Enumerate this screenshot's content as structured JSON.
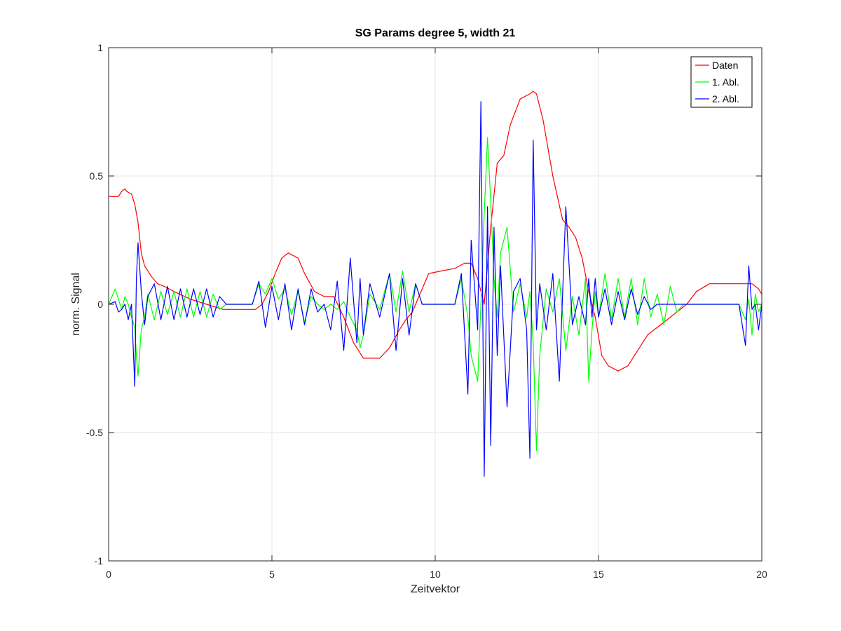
{
  "chart_data": {
    "type": "line",
    "title": "SG Params degree 5, width 21",
    "xlabel": "Zeitvektor",
    "ylabel": "norm. Signal",
    "xlim": [
      0,
      20
    ],
    "ylim": [
      -1,
      1
    ],
    "xticks": [
      0,
      5,
      10,
      15,
      20
    ],
    "xtick_labels": [
      "0",
      "5",
      "10",
      "15",
      "20"
    ],
    "yticks": [
      -1,
      -0.5,
      0,
      0.5,
      1
    ],
    "ytick_labels": [
      "-1",
      "-0.5",
      "0",
      "0.5",
      "1"
    ],
    "grid": true,
    "legend_position": "top-right",
    "series": [
      {
        "name": "Daten",
        "color": "#ff0000",
        "x": [
          0,
          0.3,
          0.4,
          0.5,
          0.55,
          0.7,
          0.8,
          0.9,
          1.0,
          1.1,
          1.3,
          1.5,
          1.7,
          2.0,
          2.5,
          3.0,
          3.5,
          4.0,
          4.5,
          4.7,
          4.9,
          5.1,
          5.3,
          5.5,
          5.8,
          6.0,
          6.3,
          6.6,
          6.9,
          7.2,
          7.5,
          7.8,
          8.0,
          8.3,
          8.6,
          8.9,
          9.1,
          9.3,
          9.5,
          9.8,
          10.2,
          10.6,
          10.9,
          11.1,
          11.3,
          11.5,
          11.7,
          11.9,
          12.1,
          12.3,
          12.6,
          12.9,
          13.0,
          13.1,
          13.3,
          13.6,
          13.9,
          14.1,
          14.3,
          14.5,
          14.7,
          14.9,
          15.1,
          15.3,
          15.6,
          15.9,
          16.2,
          16.5,
          16.8,
          17.1,
          17.4,
          17.7,
          18.0,
          18.4,
          18.8,
          19.0,
          19.2,
          19.5,
          19.7,
          19.9,
          20.0
        ],
        "values": [
          0.42,
          0.42,
          0.44,
          0.45,
          0.44,
          0.43,
          0.39,
          0.32,
          0.2,
          0.15,
          0.11,
          0.08,
          0.07,
          0.05,
          0.02,
          0.0,
          -0.02,
          -0.02,
          -0.02,
          0.0,
          0.05,
          0.12,
          0.18,
          0.2,
          0.18,
          0.12,
          0.05,
          0.03,
          0.03,
          -0.05,
          -0.15,
          -0.21,
          -0.21,
          -0.21,
          -0.17,
          -0.1,
          -0.06,
          -0.03,
          0.03,
          0.12,
          0.13,
          0.14,
          0.16,
          0.16,
          0.1,
          0.0,
          0.3,
          0.55,
          0.58,
          0.7,
          0.8,
          0.82,
          0.83,
          0.82,
          0.72,
          0.5,
          0.33,
          0.3,
          0.26,
          0.18,
          0.05,
          -0.05,
          -0.2,
          -0.24,
          -0.26,
          -0.24,
          -0.18,
          -0.12,
          -0.09,
          -0.06,
          -0.03,
          0.0,
          0.05,
          0.08,
          0.08,
          0.08,
          0.08,
          0.08,
          0.08,
          0.06,
          0.04
        ]
      },
      {
        "name": "1. Abl.",
        "color": "#00ff00",
        "x": [
          0,
          0.2,
          0.3,
          0.4,
          0.5,
          0.6,
          0.7,
          0.8,
          0.85,
          0.9,
          1.0,
          1.1,
          1.2,
          1.4,
          1.6,
          1.8,
          2.0,
          2.2,
          2.4,
          2.6,
          2.8,
          3.0,
          3.2,
          3.4,
          3.6,
          4.0,
          4.4,
          4.6,
          4.8,
          5.0,
          5.2,
          5.4,
          5.6,
          5.8,
          6.0,
          6.2,
          6.4,
          6.6,
          6.8,
          7.0,
          7.2,
          7.4,
          7.6,
          7.7,
          7.8,
          8.0,
          8.3,
          8.6,
          8.8,
          9.0,
          9.2,
          9.4,
          9.6,
          9.8,
          10.2,
          10.6,
          10.8,
          11.0,
          11.1,
          11.3,
          11.4,
          11.5,
          11.6,
          11.7,
          11.8,
          11.9,
          12.0,
          12.2,
          12.4,
          12.6,
          12.8,
          12.9,
          13.0,
          13.1,
          13.2,
          13.4,
          13.6,
          13.8,
          14.0,
          14.2,
          14.4,
          14.6,
          14.7,
          14.8,
          14.9,
          15.0,
          15.2,
          15.4,
          15.6,
          15.8,
          16.0,
          16.2,
          16.4,
          16.6,
          16.8,
          17.0,
          17.2,
          17.4,
          17.6,
          17.8,
          18.0,
          18.5,
          19.0,
          19.3,
          19.5,
          19.6,
          19.7,
          19.8,
          19.9,
          20.0
        ],
        "values": [
          0.0,
          0.06,
          0.02,
          -0.02,
          0.03,
          0.0,
          -0.05,
          -0.09,
          -0.2,
          -0.28,
          -0.1,
          -0.05,
          0.04,
          -0.06,
          0.05,
          -0.04,
          0.05,
          -0.05,
          0.06,
          -0.05,
          0.05,
          -0.05,
          0.04,
          -0.02,
          0.0,
          0.0,
          0.0,
          0.08,
          0.04,
          0.1,
          0.02,
          0.06,
          -0.04,
          0.05,
          -0.07,
          0.03,
          0.0,
          -0.02,
          0.0,
          -0.02,
          0.01,
          -0.05,
          -0.1,
          -0.17,
          -0.12,
          0.04,
          -0.02,
          0.12,
          -0.03,
          0.13,
          -0.03,
          0.08,
          0.0,
          0.0,
          0.0,
          0.0,
          0.1,
          -0.05,
          -0.2,
          -0.3,
          0.0,
          0.35,
          0.65,
          0.4,
          0.1,
          -0.05,
          0.2,
          0.3,
          -0.03,
          0.08,
          -0.05,
          0.05,
          -0.15,
          -0.57,
          -0.2,
          0.06,
          -0.03,
          0.1,
          -0.18,
          0.03,
          -0.12,
          0.1,
          -0.3,
          -0.1,
          0.05,
          -0.05,
          0.12,
          -0.06,
          0.1,
          -0.05,
          0.1,
          -0.08,
          0.1,
          -0.05,
          0.04,
          -0.08,
          0.07,
          -0.03,
          0.0,
          0.0,
          0.0,
          0.0,
          0.0,
          0.0,
          -0.06,
          0.02,
          -0.12,
          0.04,
          -0.03,
          0.0
        ]
      },
      {
        "name": "2. Abl.",
        "color": "#0000ff",
        "x": [
          0,
          0.2,
          0.3,
          0.4,
          0.5,
          0.6,
          0.7,
          0.8,
          0.85,
          0.9,
          1.0,
          1.1,
          1.2,
          1.4,
          1.6,
          1.8,
          2.0,
          2.2,
          2.4,
          2.6,
          2.8,
          3.0,
          3.2,
          3.4,
          3.6,
          4.0,
          4.4,
          4.6,
          4.8,
          5.0,
          5.2,
          5.4,
          5.6,
          5.8,
          6.0,
          6.2,
          6.4,
          6.6,
          6.8,
          7.0,
          7.2,
          7.4,
          7.6,
          7.7,
          7.8,
          8.0,
          8.3,
          8.6,
          8.8,
          9.0,
          9.2,
          9.4,
          9.6,
          9.8,
          10.2,
          10.6,
          10.8,
          11.0,
          11.1,
          11.3,
          11.4,
          11.5,
          11.6,
          11.7,
          11.8,
          11.9,
          12.0,
          12.2,
          12.4,
          12.6,
          12.8,
          12.9,
          13.0,
          13.1,
          13.2,
          13.4,
          13.6,
          13.8,
          14.0,
          14.2,
          14.4,
          14.6,
          14.7,
          14.8,
          14.9,
          15.0,
          15.2,
          15.4,
          15.6,
          15.8,
          16.0,
          16.2,
          16.4,
          16.6,
          16.8,
          17.0,
          17.2,
          17.4,
          17.6,
          17.8,
          18.0,
          18.5,
          19.0,
          19.3,
          19.5,
          19.6,
          19.7,
          19.8,
          19.9,
          20.0
        ],
        "values": [
          0.0,
          0.01,
          -0.03,
          -0.02,
          0.0,
          -0.06,
          0.0,
          -0.32,
          0.1,
          0.24,
          0.05,
          -0.08,
          0.03,
          0.08,
          -0.06,
          0.07,
          -0.06,
          0.06,
          -0.05,
          0.06,
          -0.04,
          0.06,
          -0.05,
          0.03,
          0.0,
          0.0,
          0.0,
          0.09,
          -0.09,
          0.07,
          -0.06,
          0.08,
          -0.1,
          0.06,
          -0.08,
          0.06,
          -0.03,
          0.0,
          -0.1,
          0.09,
          -0.18,
          0.18,
          -0.15,
          0.1,
          -0.12,
          0.08,
          -0.05,
          0.12,
          -0.18,
          0.1,
          -0.12,
          0.08,
          0.0,
          0.0,
          0.0,
          0.0,
          0.12,
          -0.35,
          0.25,
          -0.1,
          0.79,
          -0.67,
          0.38,
          -0.55,
          0.3,
          -0.2,
          0.15,
          -0.4,
          0.05,
          0.1,
          -0.1,
          -0.6,
          0.64,
          -0.1,
          0.08,
          -0.1,
          0.12,
          -0.3,
          0.38,
          -0.08,
          0.03,
          -0.08,
          0.1,
          -0.05,
          0.1,
          -0.05,
          0.06,
          -0.08,
          0.05,
          -0.06,
          0.06,
          -0.04,
          0.03,
          -0.02,
          0.0,
          0.0,
          0.0,
          0.0,
          0.0,
          0.0,
          0.0,
          0.0,
          0.0,
          0.0,
          -0.16,
          0.15,
          -0.02,
          0.0,
          -0.1,
          0.0
        ]
      }
    ]
  }
}
